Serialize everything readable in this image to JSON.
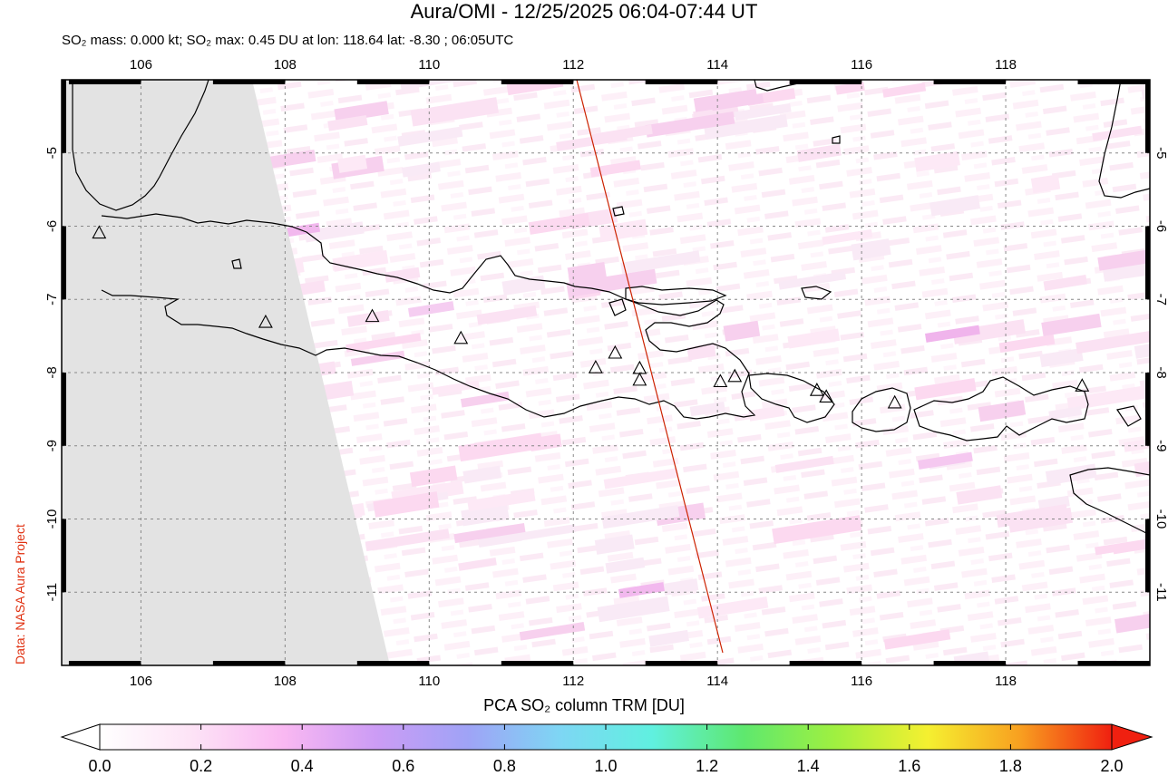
{
  "header": {
    "title": "Aura/OMI - 12/25/2025 06:04-07:44 UT",
    "subtitle": "SO₂ mass: 0.000 kt; SO₂ max: 0.45 DU at lon: 118.64 lat: -8.30 ; 06:05UTC"
  },
  "credit": "Data: NASA Aura Project",
  "map": {
    "lon_range": [
      104.9,
      120.0
    ],
    "lat_range": [
      -12.0,
      -4.0
    ],
    "x_ticks": [
      "106",
      "108",
      "110",
      "112",
      "114",
      "116",
      "118"
    ],
    "y_ticks": [
      "-5",
      "-6",
      "-7",
      "-8",
      "-9",
      "-10",
      "-11"
    ],
    "no_data_color": "#e3e3e3",
    "orbit_line_color": "#cc2200",
    "volcanoes": [
      {
        "lon": 105.42,
        "lat": -6.1
      },
      {
        "lon": 107.73,
        "lat": -7.32
      },
      {
        "lon": 109.21,
        "lat": -7.24
      },
      {
        "lon": 110.44,
        "lat": -7.54
      },
      {
        "lon": 112.31,
        "lat": -7.94
      },
      {
        "lon": 112.58,
        "lat": -7.74
      },
      {
        "lon": 112.92,
        "lat": -7.95
      },
      {
        "lon": 112.92,
        "lat": -8.11
      },
      {
        "lon": 114.04,
        "lat": -8.13
      },
      {
        "lon": 114.24,
        "lat": -8.06
      },
      {
        "lon": 115.38,
        "lat": -8.25
      },
      {
        "lon": 115.51,
        "lat": -8.34
      },
      {
        "lon": 116.46,
        "lat": -8.42
      },
      {
        "lon": 119.06,
        "lat": -8.19
      }
    ]
  },
  "colorbar": {
    "title": "PCA SO₂ column TRM [DU]",
    "ticks": [
      "0.0",
      "0.2",
      "0.4",
      "0.6",
      "0.8",
      "1.0",
      "1.2",
      "1.4",
      "1.6",
      "1.8",
      "2.0"
    ],
    "colors": [
      "#ffffff",
      "#fde3f6",
      "#f9b8f2",
      "#cc9cf5",
      "#9fa3f6",
      "#7ed6f4",
      "#60f0e0",
      "#5ee86e",
      "#a0f040",
      "#f5f030",
      "#f8a020",
      "#f02010"
    ]
  }
}
